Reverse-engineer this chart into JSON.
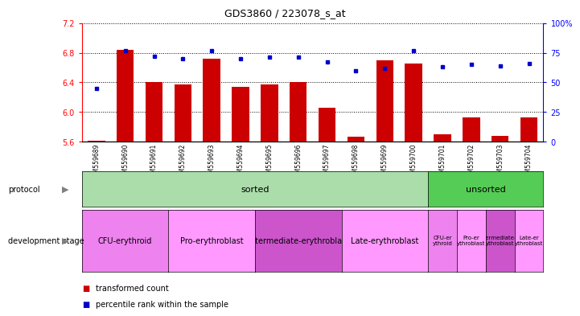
{
  "title": "GDS3860 / 223078_s_at",
  "samples": [
    "GSM559689",
    "GSM559690",
    "GSM559691",
    "GSM559692",
    "GSM559693",
    "GSM559694",
    "GSM559695",
    "GSM559696",
    "GSM559697",
    "GSM559698",
    "GSM559699",
    "GSM559700",
    "GSM559701",
    "GSM559702",
    "GSM559703",
    "GSM559704"
  ],
  "transformed_count": [
    5.62,
    6.84,
    6.41,
    6.37,
    6.72,
    6.34,
    6.37,
    6.41,
    6.06,
    5.67,
    6.7,
    6.65,
    5.7,
    5.93,
    5.68,
    5.93
  ],
  "percentile_rank": [
    45,
    77,
    72,
    70,
    77,
    70,
    71,
    71,
    67,
    60,
    62,
    77,
    63,
    65,
    64,
    66
  ],
  "ylim_left": [
    5.6,
    7.2
  ],
  "ylim_right": [
    0,
    100
  ],
  "yticks_left": [
    5.6,
    6.0,
    6.4,
    6.8,
    7.2
  ],
  "yticks_right": [
    0,
    25,
    50,
    75,
    100
  ],
  "bar_color": "#cc0000",
  "dot_color": "#0000cc",
  "bar_bottom": 5.6,
  "protocol": [
    {
      "start": 0,
      "end": 12,
      "label": "sorted",
      "color": "#aaddaa"
    },
    {
      "start": 12,
      "end": 16,
      "label": "unsorted",
      "color": "#55cc55"
    }
  ],
  "dev_stage": [
    {
      "start": 0,
      "end": 3,
      "label": "CFU-erythroid",
      "color": "#ee82ee"
    },
    {
      "start": 3,
      "end": 6,
      "label": "Pro-erythroblast",
      "color": "#ff99ff"
    },
    {
      "start": 6,
      "end": 9,
      "label": "Intermediate-erythroblast",
      "color": "#cc55cc"
    },
    {
      "start": 9,
      "end": 12,
      "label": "Late-erythroblast",
      "color": "#ff99ff"
    },
    {
      "start": 12,
      "end": 13,
      "label": "CFU-erythroid",
      "color": "#ee82ee"
    },
    {
      "start": 13,
      "end": 14,
      "label": "Pro-erythroblast",
      "color": "#ff99ff"
    },
    {
      "start": 14,
      "end": 15,
      "label": "Intermediate-erythroblast",
      "color": "#cc55cc"
    },
    {
      "start": 15,
      "end": 16,
      "label": "Late-erythroblast",
      "color": "#ff99ff"
    }
  ],
  "legend_red": "transformed count",
  "legend_blue": "percentile rank within the sample",
  "bg_color": "#ffffff"
}
